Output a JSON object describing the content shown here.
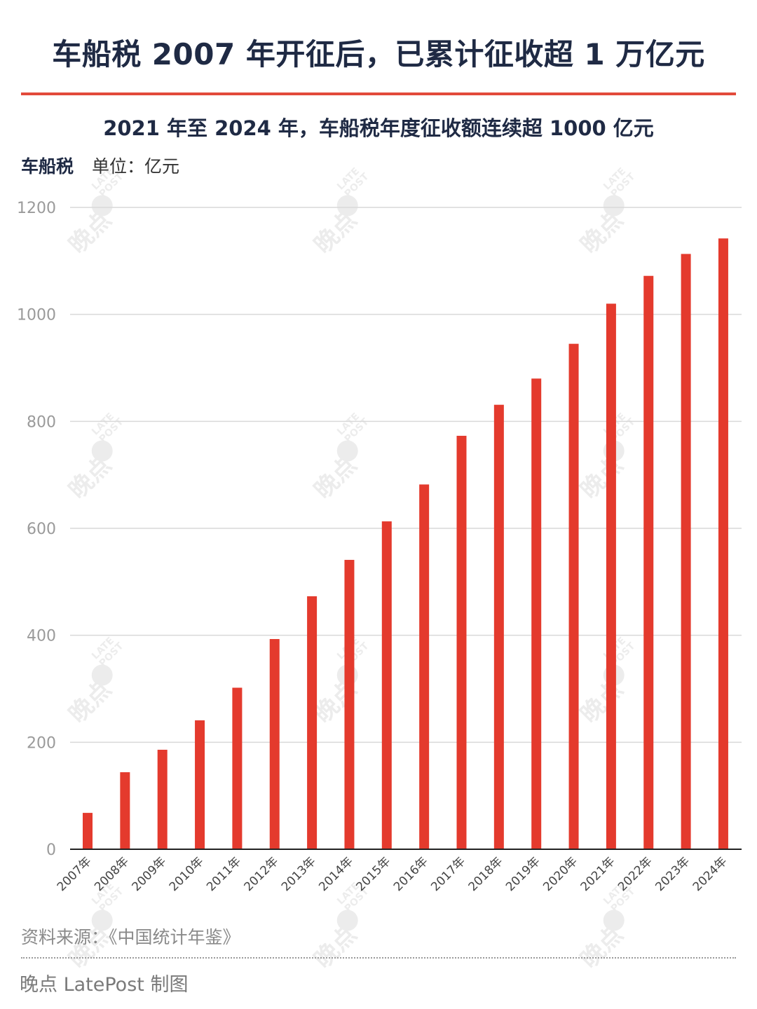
{
  "header": {
    "title": "车船税 2007 年开征后，已累计征收超 1 万亿元",
    "subtitle": "2021 年至 2024 年，车船税年度征收额连续超 1000 亿元",
    "series_label": "车船税",
    "unit_label": "单位：亿元"
  },
  "footer": {
    "source": "资料来源：《中国统计年鉴》",
    "credit": "晚点 LatePost 制图"
  },
  "watermark": {
    "cn": "晚点",
    "en": "LATE POST"
  },
  "colors": {
    "bar": "#e43a2d",
    "title": "#1f2a44",
    "accent_rule": "#e24a3b",
    "grid": "#d9d9d9",
    "axis_text": "#9a9a9a"
  },
  "chart_data": {
    "type": "bar",
    "title": "2021 年至 2024 年，车船税年度征收额连续超 1000 亿元",
    "ylabel": "单位：亿元",
    "ylim": [
      0,
      1200
    ],
    "yticks": [
      0,
      200,
      400,
      600,
      800,
      1000,
      1200
    ],
    "categories": [
      "2007年",
      "2008年",
      "2009年",
      "2010年",
      "2011年",
      "2012年",
      "2013年",
      "2014年",
      "2015年",
      "2016年",
      "2017年",
      "2018年",
      "2019年",
      "2020年",
      "2021年",
      "2022年",
      "2023年",
      "2024年"
    ],
    "series": [
      {
        "name": "车船税",
        "values": [
          68,
          144,
          186,
          241,
          302,
          393,
          473,
          541,
          613,
          682,
          773,
          831,
          880,
          945,
          1020,
          1072,
          1113,
          1142
        ]
      }
    ],
    "grid": true,
    "legend": "none"
  }
}
